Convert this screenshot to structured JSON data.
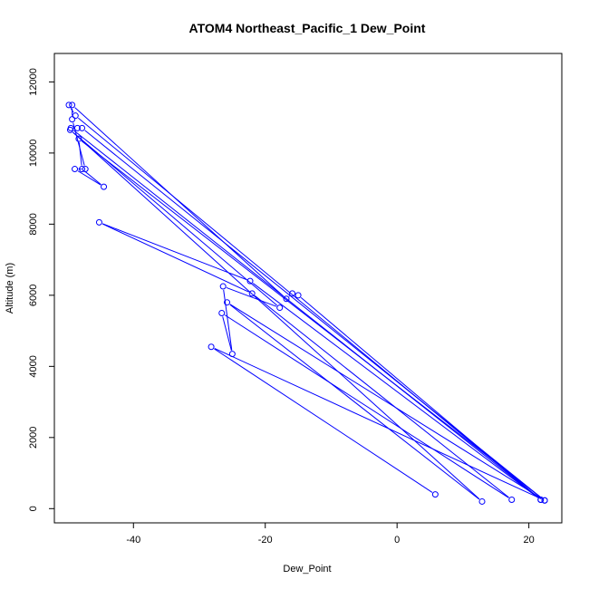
{
  "chart_data": {
    "type": "line",
    "title": "ATOM4 Northeast_Pacific_1 Dew_Point",
    "xlabel": "Dew_Point",
    "ylabel": "Altitude (m)",
    "xlim": [
      -52,
      25
    ],
    "ylim": [
      -400,
      12800
    ],
    "xticks": [
      -40,
      -20,
      0,
      20
    ],
    "yticks": [
      0,
      2000,
      4000,
      6000,
      8000,
      10000,
      12000
    ],
    "grid": false,
    "legend": "none",
    "series": [
      {
        "color": "#0000ff",
        "marker": "open-circle",
        "points": [
          [
            -49.8,
            11350
          ],
          [
            -48.8,
            11050
          ],
          [
            21.8,
            250
          ],
          [
            -49.5,
            10700
          ],
          [
            -48.5,
            10700
          ],
          [
            -47.8,
            10700
          ],
          [
            22.4,
            230
          ],
          [
            -48.3,
            10400
          ],
          [
            -47.8,
            9550
          ],
          [
            -44.5,
            9050
          ],
          [
            -48.9,
            9550
          ],
          [
            -47.3,
            9550
          ],
          [
            -49.3,
            10950
          ],
          [
            -49.3,
            11350
          ],
          [
            -16.8,
            5900
          ],
          [
            -15.9,
            6050
          ],
          [
            -15.0,
            6000
          ],
          [
            21.8,
            250
          ],
          [
            -22.3,
            6400
          ],
          [
            -45.2,
            8050
          ],
          [
            -22.0,
            6050
          ],
          [
            17.4,
            250
          ],
          [
            -26.6,
            5500
          ],
          [
            -25.0,
            4350
          ],
          [
            -26.4,
            6250
          ],
          [
            -17.8,
            5650
          ],
          [
            -49.6,
            10650
          ],
          [
            12.9,
            200
          ],
          [
            -25.8,
            5800
          ],
          [
            22.4,
            230
          ],
          [
            -28.2,
            4550
          ],
          [
            5.8,
            400
          ]
        ]
      }
    ]
  }
}
